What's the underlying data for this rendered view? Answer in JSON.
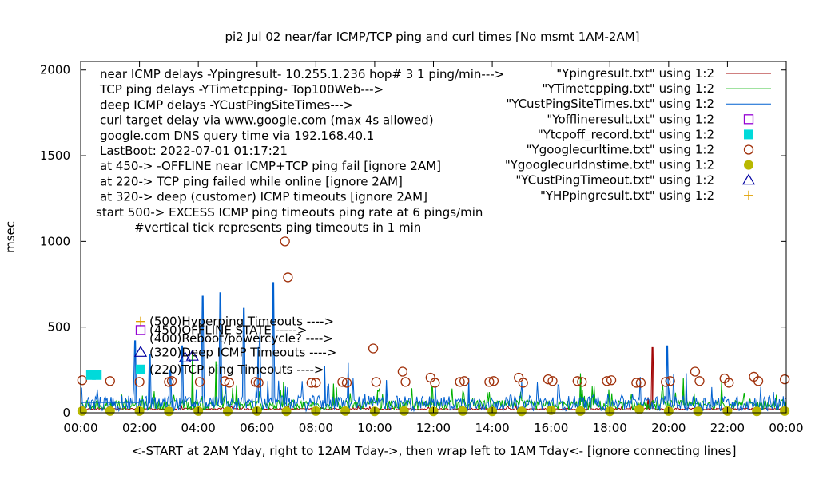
{
  "chart_data": {
    "type": "line",
    "title": "pi2  Jul 02   near/far ICMP/TCP ping and curl times [No msmt 1AM-2AM]",
    "xlabel": "<-START at 2AM Yday, right to 12AM Tday->, then wrap left to 1AM Tday<- [ignore connecting lines]",
    "ylabel": "msec",
    "xlim": [
      0,
      24
    ],
    "ylim": [
      0,
      2050
    ],
    "x_ticks": [
      "00:00",
      "02:00",
      "04:00",
      "06:00",
      "08:00",
      "10:00",
      "12:00",
      "14:00",
      "16:00",
      "18:00",
      "20:00",
      "22:00",
      "00:00"
    ],
    "y_ticks": [
      "0",
      "500",
      "1000",
      "1500",
      "2000"
    ],
    "notes": [
      "near ICMP delays -Ypingresult- 10.255.1.236 hop# 3 1 ping/min--->",
      "TCP ping delays -YTimetcpping- Top100Web--->",
      "deep ICMP delays -YCustPingSiteTimes--->",
      "curl target delay via www.google.com (max 4s allowed)",
      "google.com DNS query time via 192.168.40.1",
      "LastBoot: 2022-07-01 01:17:21",
      "at 450-> -OFFLINE near ICMP+TCP ping fail [ignore 2AM]",
      "at 220-> TCP ping failed while online [ignore 2AM]",
      "at 320-> deep (customer) ICMP timeouts [ignore 2AM]",
      "start 500-> EXCESS ICMP ping timeouts ping rate at 6 pings/min",
      "#vertical tick represents ping timeouts in 1 min"
    ],
    "legend_position": "top-right",
    "legend": [
      {
        "label": "\"Ypingresult.txt\" using 1:2",
        "color": "#a00000",
        "marker": "line"
      },
      {
        "label": "\"YTimetcpping.txt\" using 1:2",
        "color": "#00b000",
        "marker": "line"
      },
      {
        "label": "\"YCustPingSiteTimes.txt\" using 1:2",
        "color": "#0060d0",
        "marker": "line"
      },
      {
        "label": "\"Yofflineresult.txt\" using 1:2",
        "color": "#9400d3",
        "marker": "open-square"
      },
      {
        "label": "\"Ytcpoff_record.txt\" using 1:2",
        "color": "#00dada",
        "marker": "filled-square"
      },
      {
        "label": "\"Ygooglecurltime.txt\" using 1:2",
        "color": "#a0300a",
        "marker": "open-circle"
      },
      {
        "label": "\"Ygooglecurldnstime.txt\" using 1:2",
        "color": "#b8b800",
        "marker": "filled-circle"
      },
      {
        "label": "\"YCustPingTimeout.txt\" using 1:2",
        "color": "#0000a0",
        "marker": "open-triangle"
      },
      {
        "label": "\"YHPpingresult.txt\" using 1:2",
        "color": "#e0a000",
        "marker": "plus"
      }
    ],
    "key_labels": [
      {
        "label": "(500)Hyperping Timeouts ---->",
        "y": 500,
        "marker": "plus",
        "color": "#e0a000"
      },
      {
        "label": "(450)OFFLINE STATE ----->",
        "y": 450,
        "marker": "open-square",
        "color": "#9400d3"
      },
      {
        "label": "(400)Reboot/powercycle? ---->",
        "y": 400,
        "marker": "none",
        "color": "#000000"
      },
      {
        "label": "(320)Deep ICMP Timeouts ---->",
        "y": 320,
        "marker": "open-triangle",
        "color": "#0000a0"
      },
      {
        "label": "(220)TCP ping Timeouts ---->",
        "y": 220,
        "marker": "filled-square",
        "color": "#00dada"
      }
    ],
    "series": [
      {
        "name": "\"Ygooglecurltime.txt\" using 1:2",
        "marker": "open-circle",
        "x": [
          0.05,
          1.0,
          2.0,
          3.0,
          3.1,
          4.05,
          4.9,
          5.05,
          5.95,
          6.05,
          6.95,
          7.05,
          7.85,
          8.0,
          8.9,
          9.05,
          9.95,
          10.05,
          10.95,
          11.05,
          11.9,
          12.05,
          12.9,
          13.05,
          13.9,
          14.05,
          14.9,
          15.05,
          15.9,
          16.05,
          16.9,
          17.05,
          17.9,
          18.05,
          18.9,
          19.05,
          19.9,
          20.05,
          20.9,
          21.05,
          21.9,
          22.05,
          22.9,
          23.05,
          23.95
        ],
        "y": [
          190,
          185,
          180,
          180,
          185,
          180,
          185,
          175,
          180,
          175,
          1000,
          790,
          175,
          175,
          180,
          175,
          375,
          180,
          240,
          180,
          205,
          175,
          180,
          185,
          180,
          185,
          205,
          175,
          195,
          185,
          185,
          180,
          185,
          190,
          175,
          175,
          180,
          185,
          240,
          185,
          200,
          175,
          210,
          185,
          195
        ]
      },
      {
        "name": "\"Ygooglecurldnstime.txt\" using 1:2",
        "marker": "filled-circle",
        "x": [
          0.05,
          1.0,
          2.0,
          3.0,
          4.0,
          5.0,
          6.0,
          7.0,
          8.0,
          9.0,
          10.0,
          11.0,
          12.0,
          13.0,
          14.0,
          15.0,
          16.0,
          17.0,
          18.0,
          19.0,
          20.0,
          21.0,
          22.0,
          23.0,
          23.95
        ],
        "y": [
          10,
          10,
          10,
          8,
          10,
          8,
          10,
          8,
          10,
          10,
          8,
          10,
          8,
          10,
          8,
          8,
          15,
          10,
          8,
          20,
          10,
          8,
          10,
          8,
          10
        ]
      },
      {
        "name": "\"Ytcpoff_record.txt\" using 1:2",
        "marker": "filled-square",
        "x": [
          0.35,
          0.55
        ],
        "y": [
          220,
          220
        ]
      },
      {
        "name": "\"YCustPingTimeout.txt\" using 1:2",
        "marker": "open-triangle",
        "x": [
          3.55,
          3.8
        ],
        "y": [
          320,
          330
        ]
      }
    ],
    "line_series": [
      {
        "name": "\"Ypingresult.txt\" using 1:2",
        "color": "#a00000",
        "baseline": 22,
        "noise": 12,
        "spikes": [
          [
            19.45,
            380
          ],
          [
            19.3,
            90
          ]
        ]
      },
      {
        "name": "\"YTimetcpping.txt\" using 1:2",
        "color": "#00b000",
        "baseline": 45,
        "noise": 70,
        "spikes": [
          [
            3.8,
            350
          ],
          [
            4.6,
            300
          ],
          [
            5.3,
            160
          ],
          [
            6.9,
            180
          ],
          [
            8.6,
            170
          ],
          [
            10.1,
            130
          ],
          [
            11.95,
            150
          ],
          [
            17.0,
            230
          ],
          [
            20.5,
            200
          ],
          [
            21.8,
            180
          ]
        ]
      },
      {
        "name": "\"YCustPingSiteTimes.txt\" using 1:2",
        "color": "#0060d0",
        "baseline": 55,
        "noise": 90,
        "spikes": [
          [
            1.85,
            420
          ],
          [
            2.35,
            340
          ],
          [
            3.05,
            250
          ],
          [
            3.45,
            390
          ],
          [
            4.15,
            680
          ],
          [
            4.75,
            700
          ],
          [
            5.55,
            610
          ],
          [
            6.1,
            470
          ],
          [
            6.05,
            380
          ],
          [
            6.55,
            760
          ],
          [
            8.3,
            270
          ],
          [
            9.1,
            290
          ],
          [
            10.4,
            190
          ],
          [
            13.2,
            200
          ],
          [
            19.95,
            390
          ],
          [
            20.6,
            230
          ]
        ]
      }
    ]
  }
}
